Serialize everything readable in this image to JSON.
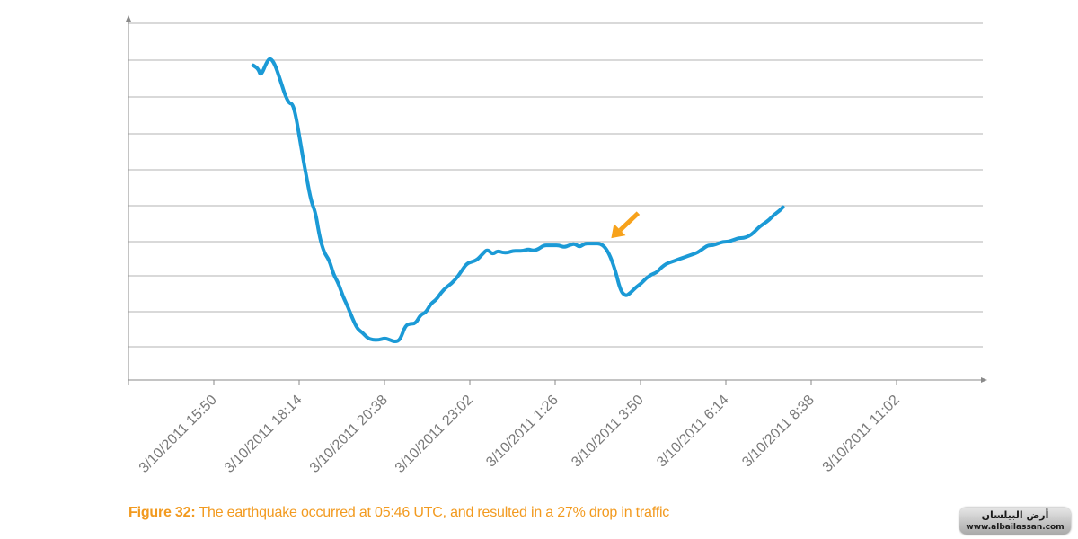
{
  "chart_data": {
    "type": "line",
    "title": "",
    "xlabel": "",
    "ylabel": "",
    "grid": true,
    "x_tick_labels": [
      "3/10/2011 15:50",
      "3/10/2011 18:14",
      "3/10/2011 20:38",
      "3/10/2011 23:02",
      "3/10/2011 1:26",
      "3/10/2011 3:50",
      "3/10/2011 6:14",
      "3/10/2011 8:38",
      "3/10/2011 11:02"
    ],
    "ylim": [
      0,
      100
    ],
    "series": [
      {
        "color": "#1b9ad6",
        "points": [
          [
            14.6,
            86.5
          ],
          [
            15.2,
            85.5
          ],
          [
            15.5,
            83.5
          ],
          [
            16.2,
            87.5
          ],
          [
            16.6,
            88.5
          ],
          [
            17.1,
            87.0
          ],
          [
            17.7,
            83.0
          ],
          [
            18.3,
            78.5
          ],
          [
            18.8,
            76.0
          ],
          [
            19.2,
            76.0
          ],
          [
            19.6,
            72.5
          ],
          [
            20.0,
            67.0
          ],
          [
            20.5,
            60.0
          ],
          [
            20.9,
            55.0
          ],
          [
            21.4,
            49.0
          ],
          [
            21.9,
            46.0
          ],
          [
            22.4,
            39.0
          ],
          [
            22.9,
            35.0
          ],
          [
            23.5,
            33.0
          ],
          [
            24.0,
            29.0
          ],
          [
            24.6,
            26.5
          ],
          [
            25.1,
            23.0
          ],
          [
            25.7,
            20.0
          ],
          [
            26.2,
            17.0
          ],
          [
            26.8,
            14.0
          ],
          [
            27.4,
            13.0
          ],
          [
            28.0,
            11.5
          ],
          [
            28.6,
            11.0
          ],
          [
            29.3,
            11.0
          ],
          [
            30.0,
            11.5
          ],
          [
            30.6,
            11.0
          ],
          [
            31.2,
            10.5
          ],
          [
            31.8,
            11.0
          ],
          [
            32.4,
            15.0
          ],
          [
            33.0,
            15.5
          ],
          [
            33.6,
            15.5
          ],
          [
            34.2,
            18.0
          ],
          [
            34.8,
            18.5
          ],
          [
            35.4,
            21.0
          ],
          [
            36.0,
            22.0
          ],
          [
            36.6,
            24.0
          ],
          [
            37.2,
            25.5
          ],
          [
            37.8,
            26.5
          ],
          [
            38.4,
            28.0
          ],
          [
            39.0,
            30.0
          ],
          [
            39.6,
            32.0
          ],
          [
            40.2,
            32.5
          ],
          [
            40.8,
            33.0
          ],
          [
            41.4,
            34.5
          ],
          [
            42.0,
            36.0
          ],
          [
            42.6,
            34.5
          ],
          [
            43.2,
            35.5
          ],
          [
            43.8,
            35.0
          ],
          [
            44.4,
            35.0
          ],
          [
            45.0,
            35.5
          ],
          [
            45.6,
            35.5
          ],
          [
            46.2,
            35.5
          ],
          [
            46.8,
            36.0
          ],
          [
            47.4,
            35.5
          ],
          [
            48.0,
            36.0
          ],
          [
            48.6,
            37.0
          ],
          [
            49.2,
            37.0
          ],
          [
            49.8,
            37.0
          ],
          [
            50.4,
            37.0
          ],
          [
            51.0,
            36.5
          ],
          [
            51.6,
            37.0
          ],
          [
            52.2,
            37.5
          ],
          [
            52.8,
            36.5
          ],
          [
            53.4,
            37.5
          ],
          [
            54.0,
            37.5
          ],
          [
            54.6,
            37.5
          ],
          [
            55.2,
            37.5
          ],
          [
            55.8,
            36.5
          ],
          [
            56.4,
            34.0
          ],
          [
            57.0,
            30.0
          ],
          [
            57.6,
            24.5
          ],
          [
            58.2,
            23.0
          ],
          [
            58.8,
            24.0
          ],
          [
            59.4,
            25.5
          ],
          [
            60.0,
            26.5
          ],
          [
            60.6,
            28.0
          ],
          [
            61.2,
            29.0
          ],
          [
            61.8,
            29.5
          ],
          [
            62.4,
            31.0
          ],
          [
            63.0,
            32.0
          ],
          [
            63.6,
            32.5
          ],
          [
            64.2,
            33.0
          ],
          [
            64.8,
            33.5
          ],
          [
            65.4,
            34.0
          ],
          [
            66.0,
            34.5
          ],
          [
            66.6,
            35.0
          ],
          [
            67.2,
            36.0
          ],
          [
            67.8,
            37.0
          ],
          [
            68.4,
            37.0
          ],
          [
            69.0,
            37.5
          ],
          [
            69.6,
            38.0
          ],
          [
            70.2,
            38.0
          ],
          [
            70.8,
            38.5
          ],
          [
            71.4,
            39.0
          ],
          [
            72.0,
            39.0
          ],
          [
            72.6,
            39.5
          ],
          [
            73.2,
            40.5
          ],
          [
            73.8,
            42.0
          ],
          [
            74.4,
            43.0
          ],
          [
            75.0,
            44.0
          ],
          [
            75.6,
            45.5
          ],
          [
            76.2,
            46.5
          ],
          [
            76.6,
            47.5
          ]
        ],
        "x_range": [
          14.6,
          76.6
        ]
      }
    ],
    "annotations": [
      {
        "type": "arrow",
        "color": "#f7a21b",
        "points_to": [
          56.3,
          37.5
        ]
      }
    ]
  },
  "caption": {
    "label": "Figure 32:",
    "text": " The earthquake occurred at 05:46 UTC, and resulted in a 27% drop in traffic",
    "color": "#f29a1f"
  },
  "watermark": {
    "logo_text": "أرض البيلسان",
    "url": "www.albailassan.com"
  }
}
